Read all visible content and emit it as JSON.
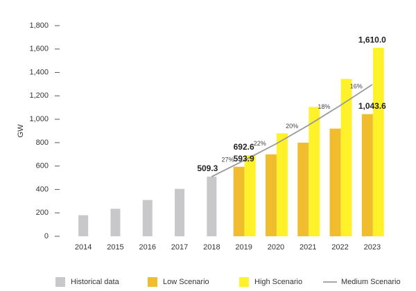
{
  "chart_data": {
    "type": "bar",
    "ylabel": "GW",
    "categories": [
      "2014",
      "2015",
      "2016",
      "2017",
      "2018",
      "2019",
      "2020",
      "2021",
      "2022",
      "2023"
    ],
    "ylim": [
      0,
      1800
    ],
    "yticks": [
      0,
      200,
      400,
      600,
      800,
      {
        "value": 1000,
        "label": "1,000"
      },
      {
        "value": 1200,
        "label": "1,200"
      },
      {
        "value": 1400,
        "label": "1,400"
      },
      {
        "value": 1600,
        "label": "1,600"
      },
      {
        "value": 1800,
        "label": "1,800"
      }
    ],
    "grid": false,
    "legend": "bottom",
    "series": [
      {
        "name": "Historical data",
        "color": "#c8c8ca",
        "kind": "bar",
        "slot": "single",
        "values": [
          180,
          235,
          310,
          405,
          509.3,
          null,
          null,
          null,
          null,
          null
        ],
        "value_labels": [
          null,
          null,
          null,
          null,
          "509.3",
          null,
          null,
          null,
          null,
          null
        ]
      },
      {
        "name": "Low Scenario",
        "color": "#f0bd2e",
        "kind": "bar",
        "slot": "left",
        "values": [
          null,
          null,
          null,
          null,
          null,
          593.9,
          700,
          800,
          920,
          1043.6
        ],
        "value_labels": [
          null,
          null,
          null,
          null,
          null,
          "593.9",
          null,
          null,
          null,
          "1,043.6"
        ]
      },
      {
        "name": "High Scenario",
        "color": "#fff22a",
        "kind": "bar",
        "slot": "right",
        "values": [
          null,
          null,
          null,
          null,
          null,
          692.6,
          880,
          1105,
          1345,
          1610
        ],
        "value_labels": [
          null,
          null,
          null,
          null,
          null,
          "692.6",
          null,
          null,
          null,
          "1,610.0"
        ]
      },
      {
        "name": "Medium Scenario",
        "color": "#9a9a9a",
        "kind": "line",
        "values": [
          null,
          null,
          null,
          null,
          509.3,
          647,
          789,
          947,
          1117,
          1296
        ],
        "growth_labels": [
          null,
          null,
          null,
          null,
          null,
          "27%",
          "22%",
          "20%",
          "18%",
          "16%"
        ]
      }
    ]
  }
}
